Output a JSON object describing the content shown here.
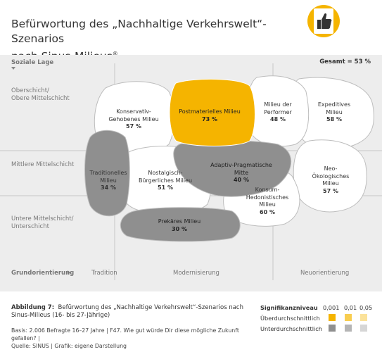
{
  "title_line1": "Befürwortung des „Nachhaltige Verkehrswelt“-Szenarios",
  "title_line2": "nach Sinus-Milieus",
  "title_sup": "®",
  "icon": "thumbs-up-icon",
  "gesamt": "Gesamt = 53 %",
  "y_axis": {
    "head": "Soziale Lage",
    "levels": [
      {
        "line1": "Oberschicht/",
        "line2": "Obere Mittelschicht"
      },
      {
        "line1": "Mittlere Mittelschicht",
        "line2": ""
      },
      {
        "line1": "Untere Mittelschicht/",
        "line2": "Unterschicht"
      }
    ]
  },
  "x_axis": {
    "head": "Grundorientierung",
    "categories": [
      "Tradition",
      "Modernisierung",
      "Neuorientierung"
    ]
  },
  "milieus": [
    {
      "line1": "Konservativ-",
      "line2": "Gehobenes Milieu",
      "value": "57 %",
      "level": "none"
    },
    {
      "line1": "Postmaterielles Milieu",
      "line2": "",
      "value": "73 %",
      "level": "above"
    },
    {
      "line1": "Milieu der",
      "line2": "Performer",
      "value": "48 %",
      "level": "none"
    },
    {
      "line1": "Expeditives",
      "line2": "Milieu",
      "value": "58 %",
      "level": "none"
    },
    {
      "line1": "Traditionelles",
      "line2": "Milieu",
      "value": "34 %",
      "level": "below"
    },
    {
      "line1": "Nostalgisch-",
      "line2": "Bürgerliches Milieu",
      "value": "51 %",
      "level": "none"
    },
    {
      "line1": "Adaptiv-Pragmatische",
      "line2": "Mitte",
      "value": "40 %",
      "level": "below"
    },
    {
      "line1": "Neo-",
      "line2": "Ökologisches",
      "line3": "Milieu",
      "value": "57 %",
      "level": "none"
    },
    {
      "line1": "Konsum-",
      "line2": "Hedonistisches",
      "line3": "Milieu",
      "value": "60 %",
      "level": "none"
    },
    {
      "line1": "Prekäres Milieu",
      "line2": "",
      "value": "30 %",
      "level": "below"
    }
  ],
  "caption": {
    "label": "Abbildung 7:",
    "text": "Befürwortung des „Nachhaltige Verkehrswelt“-Szenarios nach Sinus-Milieus (16- bis 27-Jährige)"
  },
  "source_line1": "Basis: 2.006 Befragte 16–27 Jahre | F47. Wie gut würde Dir diese mögliche Zukunft gefallen? |",
  "source_line2": "Quelle: SINUS | Grafik: eigene Darstellung",
  "significance": {
    "head": "Signifikanzniveau",
    "levels": [
      "0,001",
      "0,01",
      "0,05"
    ],
    "rows": [
      {
        "label": "Überdurchschnittlich",
        "colors": [
          "#f5b400",
          "#f8cd50",
          "#fbe29a"
        ]
      },
      {
        "label": "Unterdurchschnittlich",
        "colors": [
          "#8f8f8f",
          "#b5b5b5",
          "#d6d6d6"
        ]
      }
    ]
  },
  "colors": {
    "above": "#f5b400",
    "below": "#8f8f8f",
    "none": "#ffffff"
  }
}
